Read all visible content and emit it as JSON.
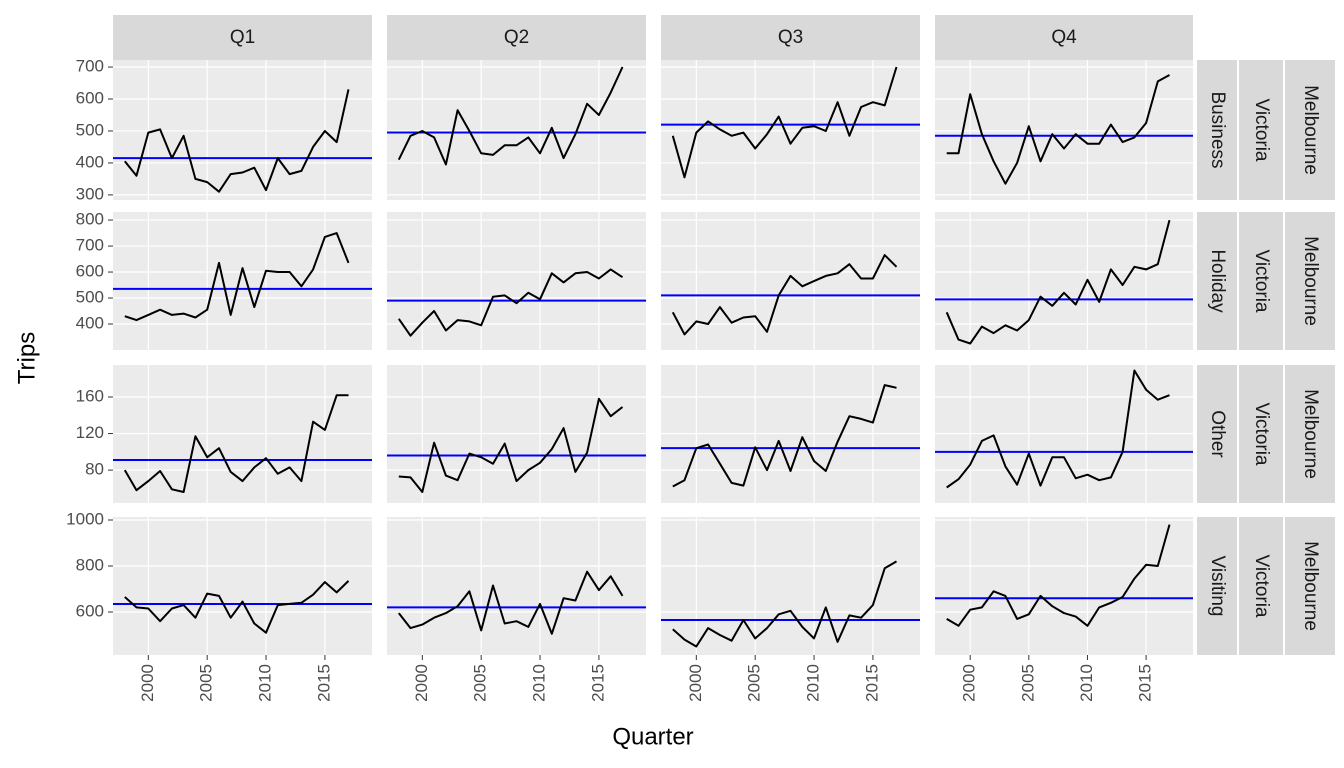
{
  "chart_data": {
    "type": "subseries",
    "x_label": "Quarter",
    "y_label": "Trips",
    "columns": [
      "Q1",
      "Q2",
      "Q3",
      "Q4"
    ],
    "x": [
      1998,
      1999,
      2000,
      2001,
      2002,
      2003,
      2004,
      2005,
      2006,
      2007,
      2008,
      2009,
      2010,
      2011,
      2012,
      2013,
      2014,
      2015,
      2016,
      2017
    ],
    "xlim": [
      1997,
      2019
    ],
    "xticks": [
      2000,
      2005,
      2010,
      2015
    ],
    "grid": true,
    "line_color": "#000000",
    "mean_color": "#0000ff",
    "rows": [
      {
        "region": "Melbourne",
        "state": "Victoria",
        "purpose": "Business",
        "ylim": [
          284,
          722
        ],
        "yticks": [
          300,
          400,
          500,
          600,
          700
        ],
        "panels": [
          {
            "values": [
              405,
              360,
              495,
              505,
              415,
              485,
              350,
              340,
              310,
              365,
              370,
              385,
              315,
              415,
              365,
              375,
              450,
              500,
              465,
              630
            ],
            "mean": 415
          },
          {
            "values": [
              410,
              485,
              500,
              480,
              395,
              565,
              500,
              430,
              425,
              455,
              455,
              480,
              430,
              510,
              415,
              490,
              585,
              550,
              620,
              700
            ],
            "mean": 495
          },
          {
            "values": [
              485,
              355,
              495,
              530,
              505,
              485,
              495,
              445,
              490,
              545,
              460,
              510,
              515,
              500,
              590,
              485,
              575,
              590,
              580,
              700
            ],
            "mean": 520
          },
          {
            "values": [
              430,
              430,
              615,
              490,
              405,
              335,
              400,
              515,
              405,
              490,
              445,
              490,
              460,
              460,
              520,
              465,
              480,
              525,
              655,
              675
            ],
            "mean": 485
          }
        ]
      },
      {
        "region": "Melbourne",
        "state": "Victoria",
        "purpose": "Holiday",
        "ylim": [
          300,
          831
        ],
        "yticks": [
          400,
          500,
          600,
          700,
          800
        ],
        "panels": [
          {
            "values": [
              430,
              415,
              435,
              455,
              435,
              440,
              425,
              455,
              635,
              435,
              615,
              465,
              605,
              600,
              600,
              545,
              610,
              735,
              750,
              635
            ],
            "mean": 535
          },
          {
            "values": [
              420,
              355,
              405,
              450,
              375,
              415,
              410,
              395,
              505,
              510,
              480,
              520,
              495,
              595,
              560,
              595,
              600,
              575,
              610,
              580
            ],
            "mean": 490
          },
          {
            "values": [
              445,
              360,
              410,
              400,
              465,
              405,
              425,
              430,
              370,
              510,
              585,
              545,
              565,
              585,
              595,
              630,
              575,
              575,
              665,
              620
            ],
            "mean": 510
          },
          {
            "values": [
              445,
              340,
              325,
              390,
              365,
              395,
              375,
              415,
              505,
              470,
              520,
              475,
              570,
              485,
              610,
              550,
              620,
              610,
              630,
              800
            ],
            "mean": 495
          }
        ]
      },
      {
        "region": "Melbourne",
        "state": "Victoria",
        "purpose": "Other",
        "ylim": [
          44,
          195
        ],
        "yticks": [
          80,
          120,
          160
        ],
        "panels": [
          {
            "values": [
              80,
              58,
              68,
              79,
              59,
              56,
              117,
              94,
              104,
              78,
              68,
              83,
              93,
              76,
              83,
              68,
              133,
              124,
              162,
              162
            ],
            "mean": 91
          },
          {
            "values": [
              73,
              72,
              56,
              110,
              74,
              69,
              98,
              94,
              87,
              109,
              68,
              80,
              88,
              103,
              126,
              78,
              99,
              158,
              139,
              149
            ],
            "mean": 96
          },
          {
            "values": [
              62,
              69,
              104,
              108,
              87,
              66,
              63,
              105,
              80,
              112,
              79,
              116,
              90,
              79,
              111,
              139,
              136,
              132,
              173,
              170
            ],
            "mean": 104
          },
          {
            "values": [
              61,
              70,
              86,
              112,
              118,
              84,
              64,
              98,
              63,
              94,
              94,
              71,
              75,
              69,
              72,
              100,
              189,
              168,
              157,
              162
            ],
            "mean": 100
          }
        ]
      },
      {
        "region": "Melbourne",
        "state": "Victoria",
        "purpose": "Visiting",
        "ylim": [
          413,
          1013
        ],
        "yticks": [
          600,
          800,
          1000
        ],
        "panels": [
          {
            "values": [
              665,
              620,
              615,
              560,
              615,
              630,
              575,
              680,
              670,
              575,
              645,
              550,
              510,
              630,
              635,
              640,
              675,
              730,
              685,
              735
            ],
            "mean": 635
          },
          {
            "values": [
              595,
              530,
              545,
              575,
              595,
              625,
              690,
              520,
              715,
              550,
              560,
              535,
              635,
              505,
              660,
              650,
              775,
              695,
              755,
              670
            ],
            "mean": 620
          },
          {
            "values": [
              525,
              480,
              450,
              530,
              500,
              475,
              565,
              485,
              530,
              590,
              605,
              535,
              485,
              620,
              470,
              585,
              575,
              630,
              790,
              820
            ],
            "mean": 565
          },
          {
            "values": [
              570,
              540,
              610,
              620,
              690,
              670,
              570,
              590,
              670,
              625,
              595,
              580,
              540,
              620,
              640,
              665,
              745,
              805,
              800,
              980
            ],
            "mean": 660
          }
        ]
      }
    ]
  }
}
